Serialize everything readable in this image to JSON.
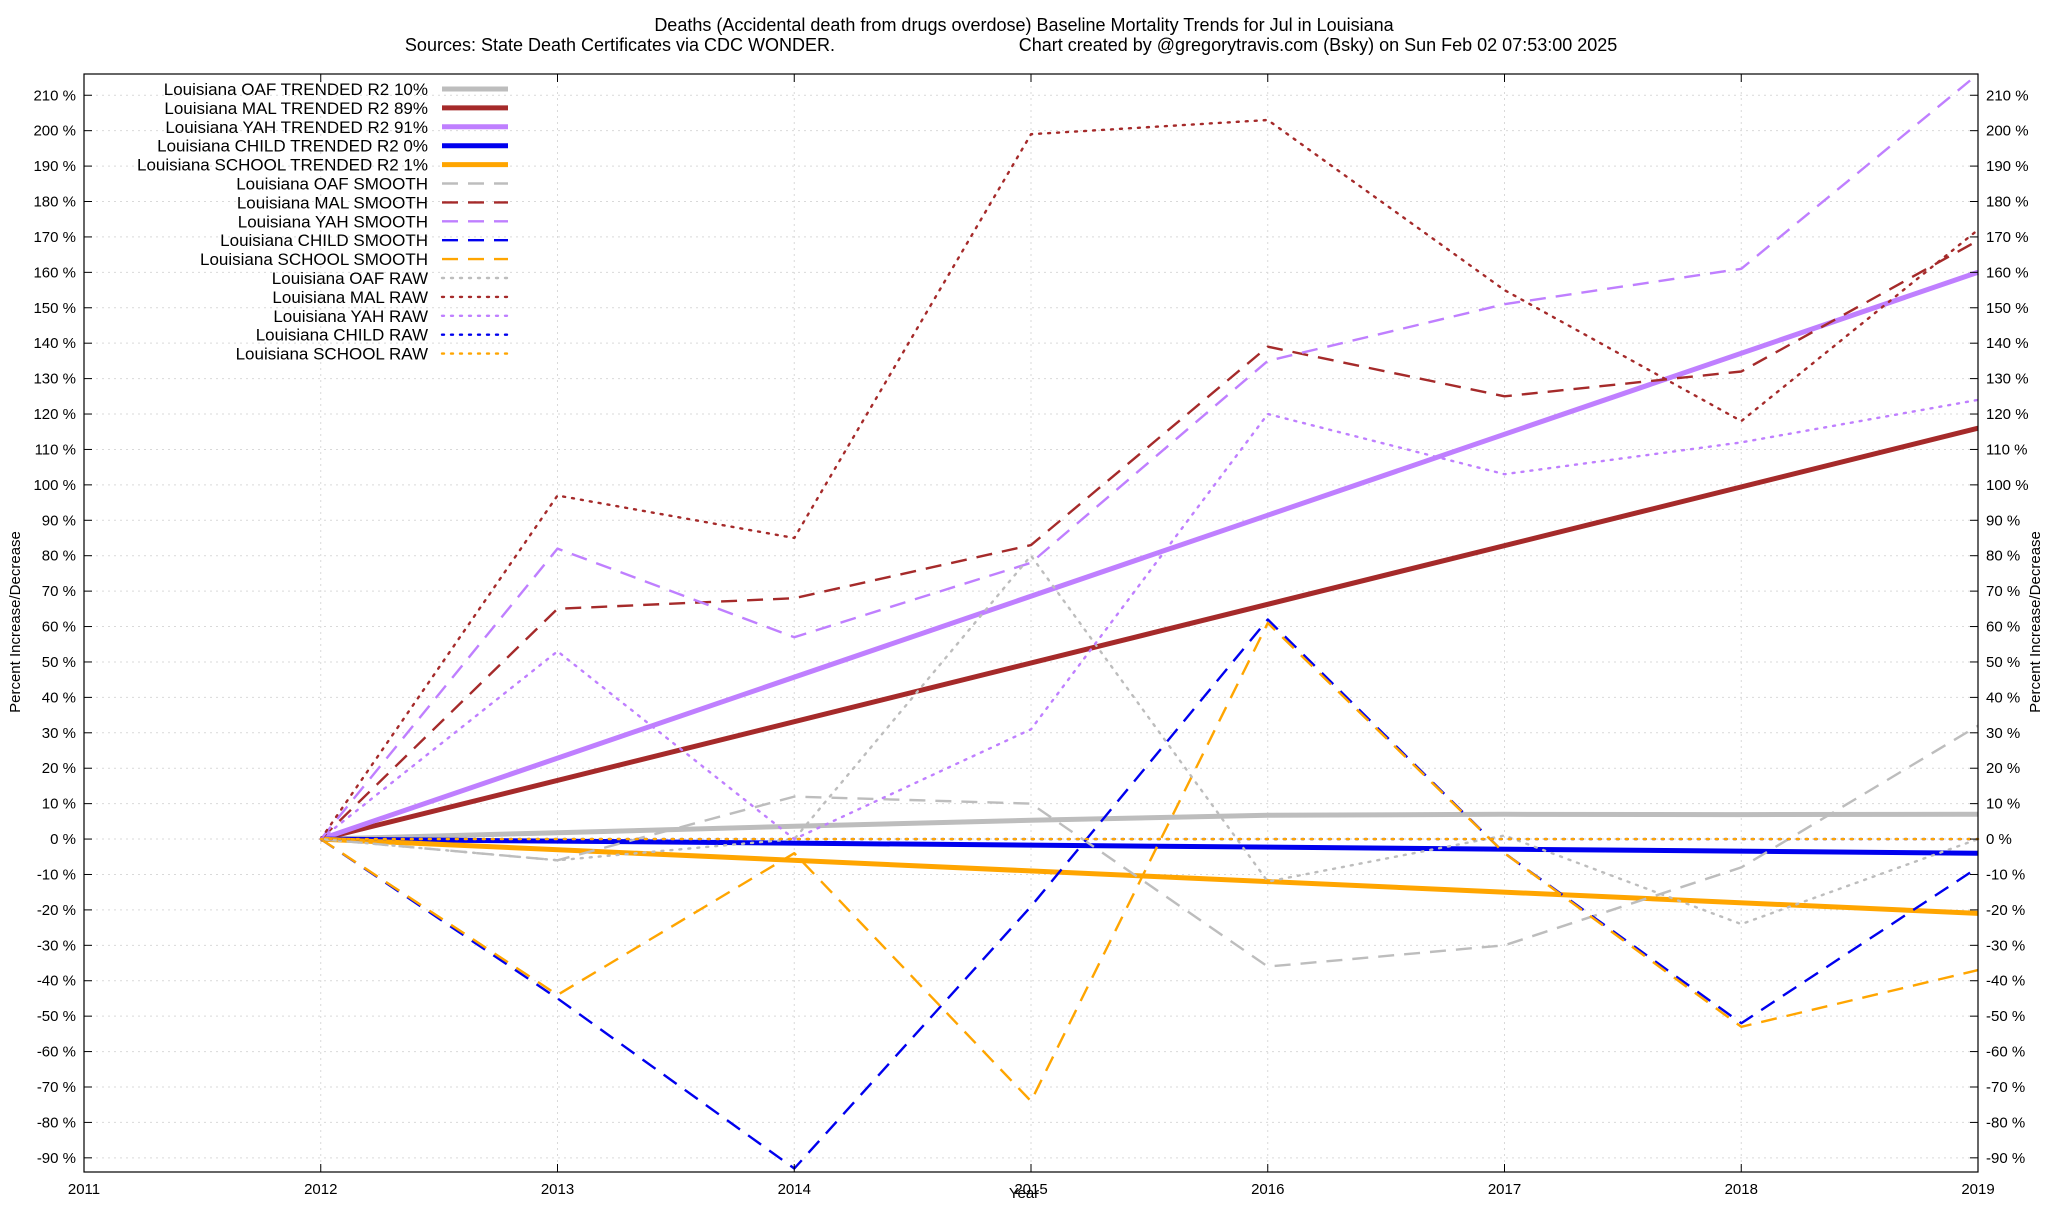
{
  "chart_data": {
    "type": "line",
    "title": "Deaths (Accidental death from drugs overdose)  Baseline Mortality Trends for Jul in Louisiana",
    "subtitle_left": "Sources: State Death Certificates via CDC WONDER.",
    "subtitle_right": "Chart created by @gregorytravis.com (Bsky) on Sun Feb 02 07:53:00 2025",
    "xlabel": "Year",
    "ylabel_left": "Percent Increase/Decrease",
    "ylabel_right": "Percent Increase/Decrease",
    "xlim": [
      2011,
      2019
    ],
    "ylim": [
      -94,
      216
    ],
    "x_ticks": [
      2011,
      2012,
      2013,
      2014,
      2015,
      2016,
      2017,
      2018,
      2019
    ],
    "y_ticks": [
      -90,
      -80,
      -70,
      -60,
      -50,
      -40,
      -30,
      -20,
      -10,
      0,
      10,
      20,
      30,
      40,
      50,
      60,
      70,
      80,
      90,
      100,
      110,
      120,
      130,
      140,
      150,
      160,
      170,
      180,
      190,
      200,
      210
    ],
    "y_tick_suffix": " %",
    "grid": true,
    "legend_position": "top-left",
    "series": [
      {
        "name": "Louisiana OAF TRENDED R2  10%",
        "color": "#bdbdbd",
        "style": "solid",
        "x": [
          2012,
          2013,
          2014,
          2015,
          2016,
          2017,
          2018,
          2019
        ],
        "values": [
          0,
          1.8,
          3.6,
          5.3,
          6.7,
          7.0,
          6.9,
          7.0
        ]
      },
      {
        "name": "Louisiana MAL TRENDED R2  89%",
        "color": "#a52a2a",
        "style": "solid",
        "x": [
          2012,
          2019
        ],
        "values": [
          0,
          116
        ]
      },
      {
        "name": "Louisiana YAH TRENDED R2  91%",
        "color": "#bf7fff",
        "style": "solid",
        "x": [
          2012,
          2019
        ],
        "values": [
          0,
          160
        ]
      },
      {
        "name": "Louisiana CHILD TRENDED R2   0%",
        "color": "#0000ee",
        "style": "solid",
        "x": [
          2012,
          2019
        ],
        "values": [
          0,
          -4
        ]
      },
      {
        "name": "Louisiana SCHOOL TRENDED R2   1%",
        "color": "#ffa500",
        "style": "solid",
        "x": [
          2012,
          2019
        ],
        "values": [
          0,
          -21
        ]
      },
      {
        "name": "Louisiana OAF SMOOTH",
        "color": "#bdbdbd",
        "style": "dashed",
        "x": [
          2012,
          2013,
          2014,
          2015,
          2016,
          2017,
          2018,
          2019
        ],
        "values": [
          0,
          -6,
          12,
          10,
          -36,
          -30,
          -8,
          32
        ]
      },
      {
        "name": "Louisiana MAL SMOOTH",
        "color": "#a52a2a",
        "style": "dashed",
        "x": [
          2012,
          2013,
          2014,
          2015,
          2016,
          2017,
          2018,
          2019
        ],
        "values": [
          0,
          65,
          68,
          83,
          139,
          125,
          132,
          169
        ]
      },
      {
        "name": "Louisiana YAH SMOOTH",
        "color": "#bf7fff",
        "style": "dashed",
        "x": [
          2012,
          2013,
          2014,
          2015,
          2016,
          2017,
          2018,
          2019
        ],
        "values": [
          0,
          82,
          57,
          78,
          135,
          151,
          161,
          216
        ]
      },
      {
        "name": "Louisiana CHILD SMOOTH",
        "color": "#0000ee",
        "style": "dashed",
        "x": [
          2012,
          2013,
          2014,
          2015,
          2016,
          2017,
          2018,
          2019
        ],
        "values": [
          0,
          -45,
          -93,
          -19,
          62,
          -4,
          -52,
          -8
        ]
      },
      {
        "name": "Louisiana SCHOOL SMOOTH",
        "color": "#ffa500",
        "style": "dashed",
        "x": [
          2012,
          2013,
          2014,
          2015,
          2016,
          2017,
          2018,
          2019
        ],
        "values": [
          0,
          -44,
          -4,
          -74,
          61,
          -4,
          -53,
          -37
        ]
      },
      {
        "name": "Louisiana OAF RAW",
        "color": "#bdbdbd",
        "style": "dotted",
        "x": [
          2012,
          2013,
          2014,
          2015,
          2016,
          2017,
          2018,
          2019
        ],
        "values": [
          0,
          -6,
          0,
          80,
          -12,
          1,
          -24,
          0
        ]
      },
      {
        "name": "Louisiana MAL RAW",
        "color": "#a52a2a",
        "style": "dotted",
        "x": [
          2012,
          2013,
          2014,
          2015,
          2016,
          2017,
          2018,
          2019
        ],
        "values": [
          0,
          97,
          85,
          199,
          203,
          155,
          118,
          172
        ]
      },
      {
        "name": "Louisiana YAH RAW",
        "color": "#bf7fff",
        "style": "dotted",
        "x": [
          2012,
          2013,
          2014,
          2015,
          2016,
          2017,
          2018,
          2019
        ],
        "values": [
          0,
          53,
          0,
          31,
          120,
          103,
          112,
          124
        ]
      },
      {
        "name": "Louisiana CHILD RAW",
        "color": "#0000ee",
        "style": "dotted",
        "x": [
          2012,
          2013,
          2014,
          2015,
          2016,
          2017,
          2018,
          2019
        ],
        "values": [
          0,
          0,
          0,
          0,
          0,
          0,
          0,
          0
        ]
      },
      {
        "name": "Louisiana SCHOOL RAW",
        "color": "#ffa500",
        "style": "dotted",
        "x": [
          2012,
          2013,
          2014,
          2015,
          2016,
          2017,
          2018,
          2019
        ],
        "values": [
          0,
          0,
          0,
          0,
          0,
          0,
          0,
          0
        ]
      }
    ]
  }
}
